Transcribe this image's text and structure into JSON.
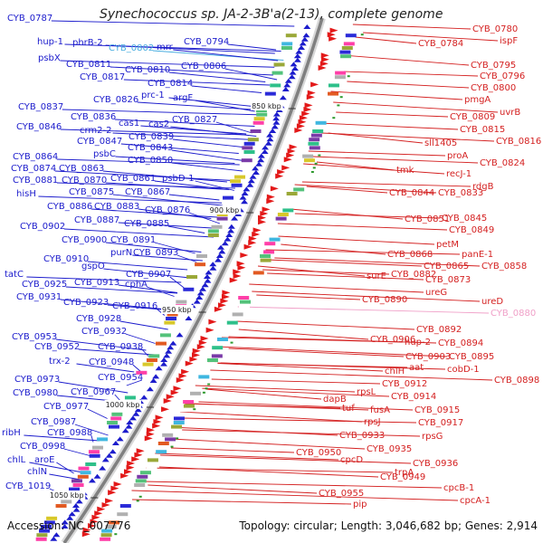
{
  "title": "Synechococcus sp. JA-2-3B'a(2-13), complete genome",
  "footer": {
    "accession_label": "Accession:",
    "accession": "NC_007776",
    "topology_label": "Topology:",
    "topology": "circular",
    "length_label": "Length:",
    "length": "3,046,682 bp",
    "genes_label": "Genes:",
    "genes": "2,914"
  },
  "ticks": [
    "850 kbp",
    "900 kbp",
    "950 kbp",
    "1000 kbp",
    "1050 kbp"
  ],
  "colors": {
    "left_labels": "#1a1acc",
    "right_labels": "#d42020",
    "highlight_left": "#4aaee0",
    "highlight_right": "#f0a0c8",
    "backbone": "#808080"
  },
  "left_labels": [
    "CYB_0787",
    "hup-1",
    "phrB-2",
    "CYB_0802",
    "mrr",
    "CYB_0794",
    "psbX",
    "CYB_0811",
    "CYB_0810",
    "CYB_0806",
    "CYB_0817",
    "CYB_0814",
    "CYB_0826",
    "prc-1",
    "argF",
    "CYB_0837",
    "CYB_0836",
    "cas1",
    "cas2",
    "CYB_0827",
    "CYB_0846",
    "crm2-2",
    "CYB_0839",
    "CYB_0847",
    "CYB_0843",
    "CYB_0864",
    "psbC",
    "CYB_0850",
    "CYB_0874",
    "CYB_0863",
    "CYB_0881",
    "CYB_0870",
    "CYB_0861",
    "psbD-1",
    "CYB_0875",
    "CYB_0867",
    "hisH",
    "CYB_0886",
    "CYB_0883",
    "CYB_0876",
    "CYB_0887",
    "CYB_0885",
    "CYB_0902",
    "CYB_0900",
    "CYB_0891",
    "purN",
    "CYB_0893",
    "CYB_0910",
    "gspO",
    "CYB_0907",
    "tatC",
    "CYB_0925",
    "CYB_0913",
    "cphA",
    "CYB_0931",
    "CYB_0923",
    "CYB_0916",
    "CYB_0928",
    "CYB_0932",
    "CYB_0953",
    "CYB_0952",
    "CYB_0938",
    "trx-2",
    "CYB_0948",
    "CYB_0973",
    "CYB_0954",
    "CYB_0980",
    "CYB_0967",
    "CYB_0977",
    "CYB_0987",
    "ribH",
    "CYB_0988",
    "CYB_0998",
    "chlL",
    "aroE",
    "chlN",
    "CYB_1019"
  ],
  "right_labels": [
    "CYB_0780",
    "CYB_0784",
    "ispF",
    "CYB_0795",
    "CYB_0796",
    "CYB_0800",
    "pmgA",
    "uvrB",
    "CYB_0809",
    "CYB_0815",
    "CYB_0816",
    "sll1405",
    "proA",
    "CYB_0824",
    "tmk",
    "recJ-1",
    "rdgB",
    "CYB_0844",
    "CYB_0833",
    "CYB_0851",
    "CYB_0845",
    "CYB_0849",
    "petM",
    "CYB_0868",
    "panE-1",
    "CYB_0865",
    "CYB_0858",
    "surE",
    "CYB_0882",
    "CYB_0873",
    "ureG",
    "ureD",
    "CYB_0890",
    "CYB_0880",
    "CYB_0892",
    "CYB_0906",
    "hup-2",
    "CYB_0894",
    "CYB_0903",
    "CYB_0895",
    "aat",
    "cobD-1",
    "chlH",
    "CYB_0898",
    "CYB_0912",
    "rpsL",
    "CYB_0914",
    "dapB",
    "tuf",
    "fusA",
    "CYB_0915",
    "rpsJ",
    "CYB_0917",
    "rpsG",
    "CYB_0933",
    "CYB_0935",
    "CYB_0950",
    "cpcD",
    "CYB_0936",
    "CYB_0949",
    "trpA",
    "cpcB-1",
    "CYB_0955",
    "cpcA-1",
    "pip"
  ]
}
